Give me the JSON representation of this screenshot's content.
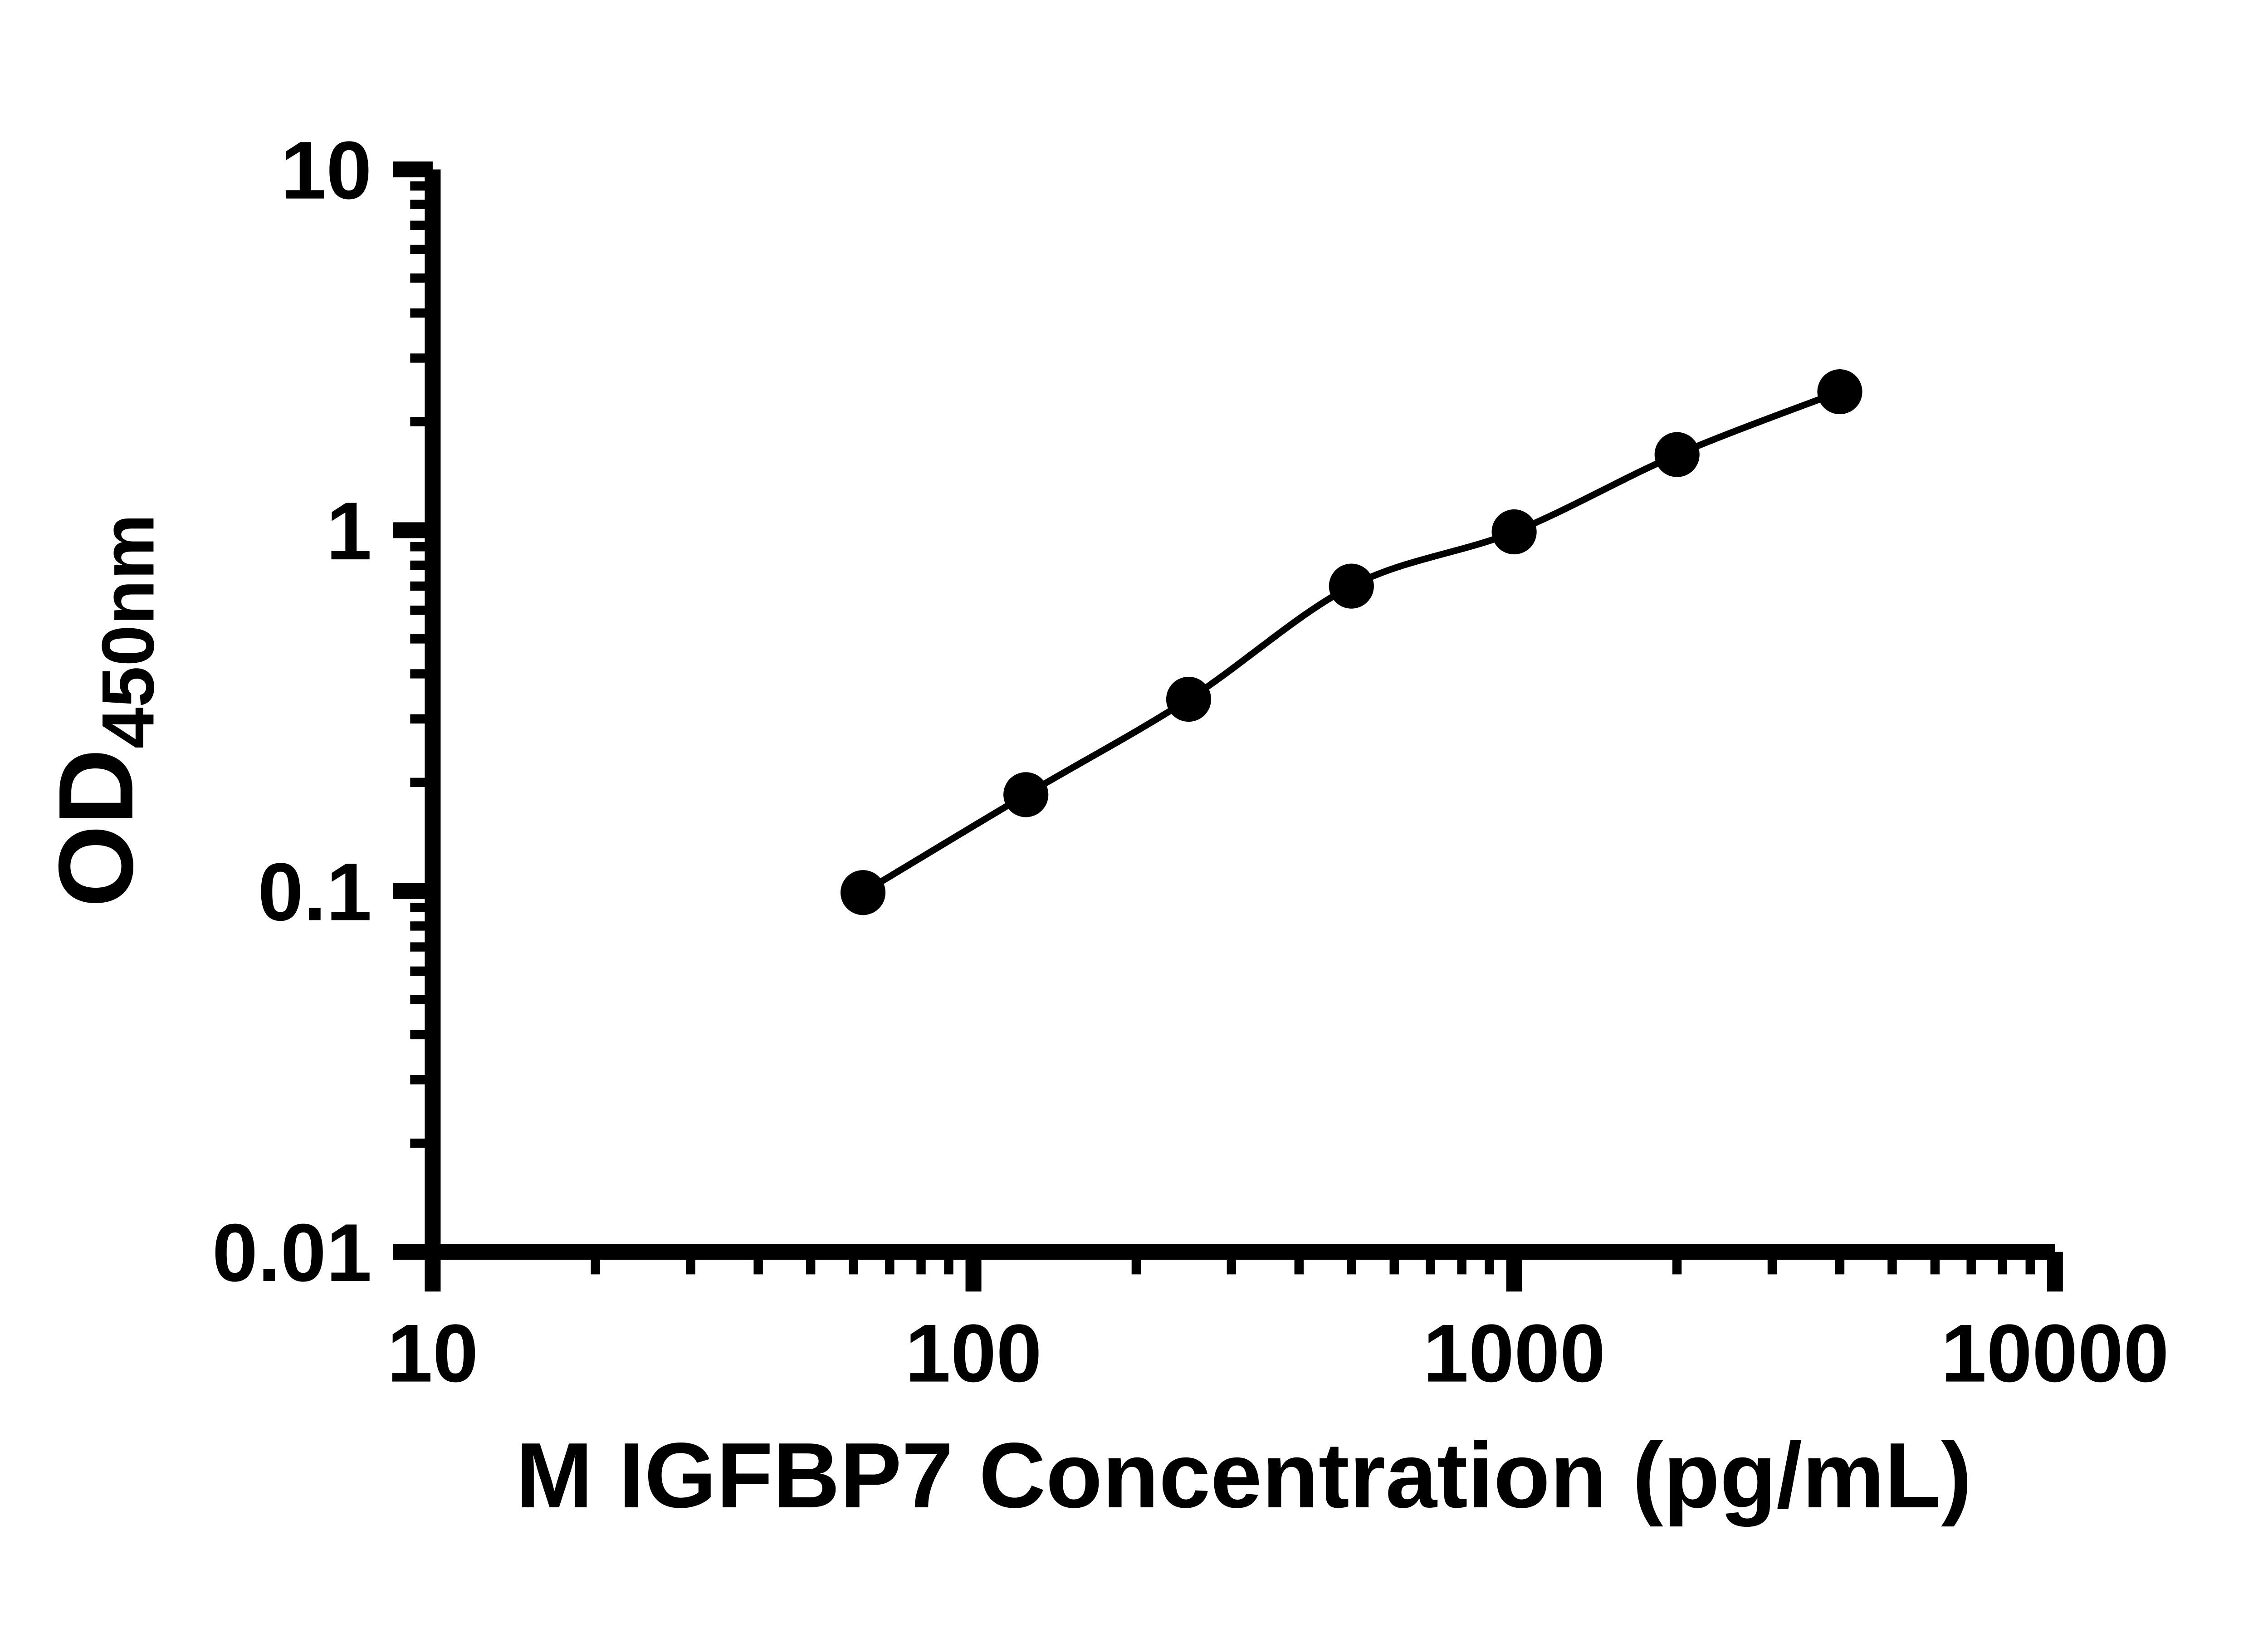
{
  "chart_data": {
    "type": "scatter",
    "subtype": "log-log standard curve with fitted line",
    "x": [
      62.5,
      125,
      250,
      500,
      1000,
      2000,
      4000
    ],
    "y": [
      0.099,
      0.185,
      0.34,
      0.7,
      0.99,
      1.62,
      2.42
    ],
    "xlabel": "M IGFBP7 Concentration (pg/mL)",
    "ylabel_main": "OD",
    "ylabel_sub": "450nm",
    "x_scale": "log",
    "y_scale": "log",
    "xlim": [
      10,
      10000
    ],
    "ylim": [
      0.01,
      10
    ],
    "x_ticks": [
      10,
      100,
      1000,
      10000
    ],
    "x_tick_labels": [
      "10",
      "100",
      "1000",
      "10000"
    ],
    "y_ticks": [
      0.01,
      0.1,
      1,
      10
    ],
    "y_tick_labels": [
      "0.01",
      "0.1",
      "1",
      "10"
    ],
    "grid": false,
    "legend": null,
    "line_color": "#000000",
    "marker_color": "#000000",
    "axis_color": "#000000",
    "background": "#ffffff"
  }
}
